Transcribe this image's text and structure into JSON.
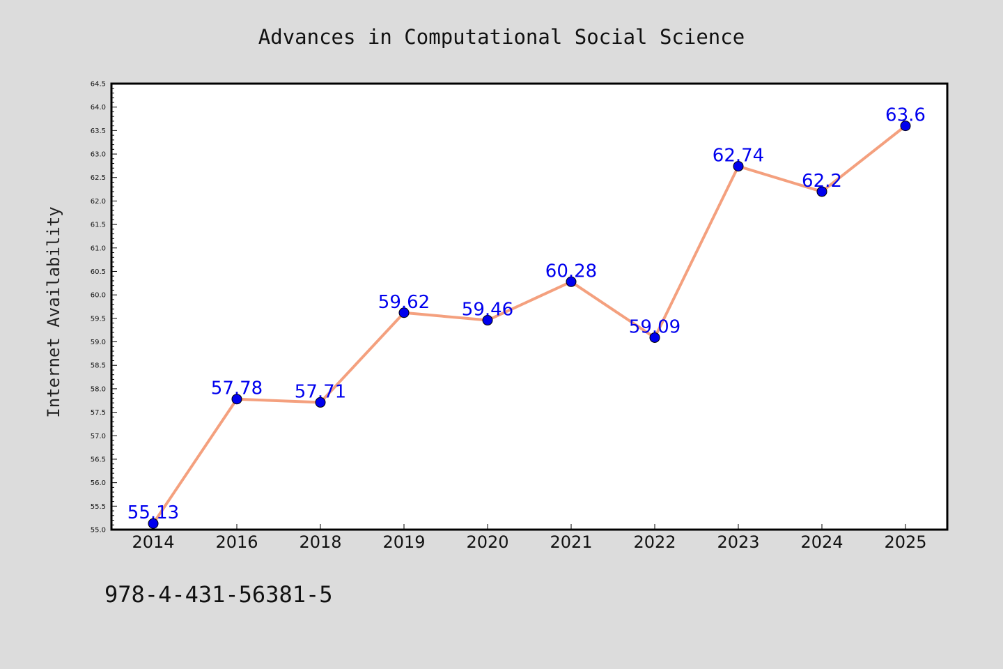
{
  "chart_data": {
    "type": "line",
    "title": "Advances in Computational Social Science",
    "ylabel": "Internet Availability",
    "xlabel": "",
    "categories": [
      "2014",
      "2016",
      "2018",
      "2019",
      "2020",
      "2021",
      "2022",
      "2023",
      "2024",
      "2025"
    ],
    "series": [
      {
        "values": [
          55.13,
          57.78,
          57.71,
          59.62,
          59.46,
          60.28,
          59.09,
          62.74,
          62.2,
          63.6
        ],
        "data_labels": [
          "55.13",
          "57.78",
          "57.71",
          "59.62",
          "59.46",
          "60.28",
          "59.09",
          "62.74",
          "62.2",
          "63.6"
        ],
        "line_color": "#f4a07e",
        "marker_color": "#0000ee"
      }
    ],
    "ylim": [
      55.0,
      64.5
    ],
    "yticks": [
      "55.0",
      "55.5",
      "56.0",
      "56.5",
      "57.0",
      "57.5",
      "58.0",
      "58.5",
      "59.0",
      "59.5",
      "60.0",
      "60.5",
      "61.0",
      "61.5",
      "62.0",
      "62.5",
      "63.0",
      "63.5",
      "64.0",
      "64.5"
    ],
    "grid": false,
    "legend": "none"
  },
  "footer": {
    "isbn": "978-4-431-56381-5"
  },
  "colors": {
    "background": "#dcdcdc",
    "plot_background": "#ffffff",
    "line": "#f4a07e",
    "marker": "#0000ee",
    "label": "#0000ee"
  }
}
